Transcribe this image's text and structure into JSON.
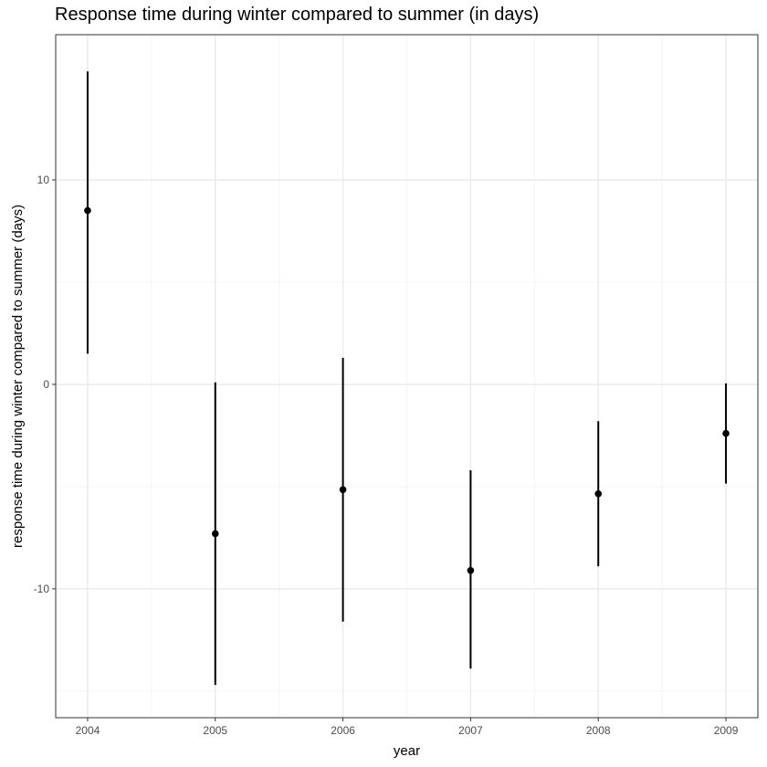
{
  "chart_data": {
    "type": "errorbar",
    "title": "Response time during winter compared to summer (in days)",
    "xlabel": "year",
    "ylabel": "response time during winter compared to summer (days)",
    "x": [
      2004,
      2005,
      2006,
      2007,
      2008,
      2009
    ],
    "xtick_labels": [
      "2004",
      "2005",
      "2006",
      "2007",
      "2008",
      "2009"
    ],
    "y": [
      8.5,
      -7.3,
      -5.15,
      -9.1,
      -5.35,
      -2.4
    ],
    "ymin": [
      1.5,
      -14.7,
      -11.6,
      -13.9,
      -8.9,
      -4.85
    ],
    "ymax": [
      15.3,
      0.1,
      1.3,
      -4.2,
      -1.8,
      0.05
    ],
    "yticks": [
      -10,
      0,
      10
    ],
    "ytick_labels": [
      "-10",
      "0",
      "10"
    ],
    "xlim": [
      2003.75,
      2009.25
    ],
    "ylim": [
      -16.3,
      17.1
    ],
    "grid": true,
    "colors": {
      "point": "#000000",
      "grid_major": "#ebebeb",
      "grid_minor": "#f5f5f5",
      "panel_border": "#333333"
    }
  }
}
